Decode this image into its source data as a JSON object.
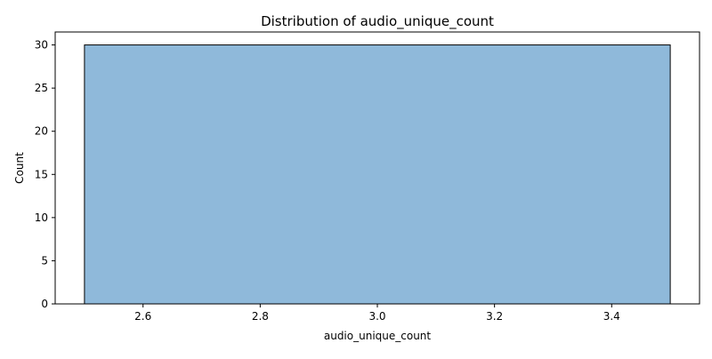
{
  "chart_data": {
    "type": "bar",
    "title": "Distribution of audio_unique_count",
    "xlabel": "audio_unique_count",
    "ylabel": "Count",
    "bins": [
      {
        "x_start": 2.5,
        "x_end": 3.5,
        "count": 30
      }
    ],
    "xlim": [
      2.45,
      3.55
    ],
    "ylim": [
      0,
      31.5
    ],
    "x_ticks": [
      "2.6",
      "2.8",
      "3.0",
      "3.2",
      "3.4"
    ],
    "y_ticks": [
      "0",
      "5",
      "10",
      "15",
      "20",
      "25",
      "30"
    ],
    "bar_color": "#8fb9da",
    "bar_edge_color": "#000000",
    "grid": false,
    "legend": "none"
  }
}
